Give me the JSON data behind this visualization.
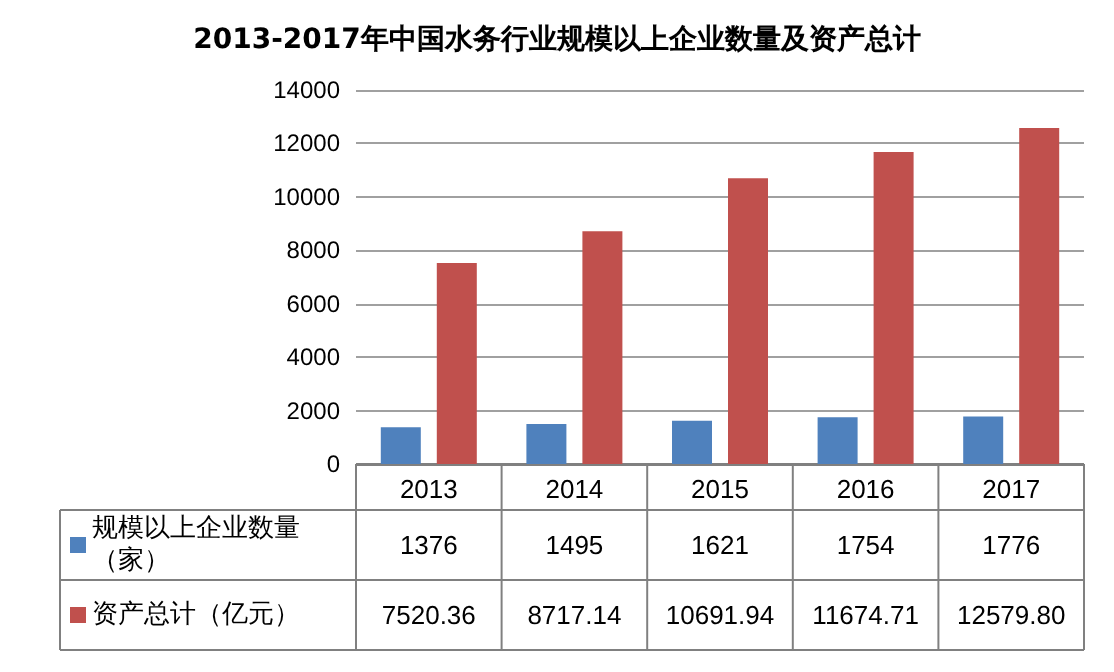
{
  "chart_data": {
    "type": "bar",
    "title": "2013-2017年中国水务行业规模以上企业数量及资产总计",
    "categories": [
      "2013",
      "2014",
      "2015",
      "2016",
      "2017"
    ],
    "series": [
      {
        "name": "规模以上企业数量（家）",
        "color": "#4f81bd",
        "values": [
          1376,
          1495,
          1621,
          1754,
          1776
        ],
        "value_labels": [
          "1376",
          "1495",
          "1621",
          "1754",
          "1776"
        ]
      },
      {
        "name": "资产总计（亿元）",
        "color": "#c0504d",
        "values": [
          7520.36,
          8717.14,
          10691.94,
          11674.71,
          12579.8
        ],
        "value_labels": [
          "7520.36",
          "8717.14",
          "10691.94",
          "11674.71",
          "12579.80"
        ]
      }
    ],
    "ylim": [
      0,
      14000
    ],
    "yticks": [
      0,
      2000,
      4000,
      6000,
      8000,
      10000,
      12000,
      14000
    ],
    "grid": "y",
    "legend": "bottom"
  }
}
